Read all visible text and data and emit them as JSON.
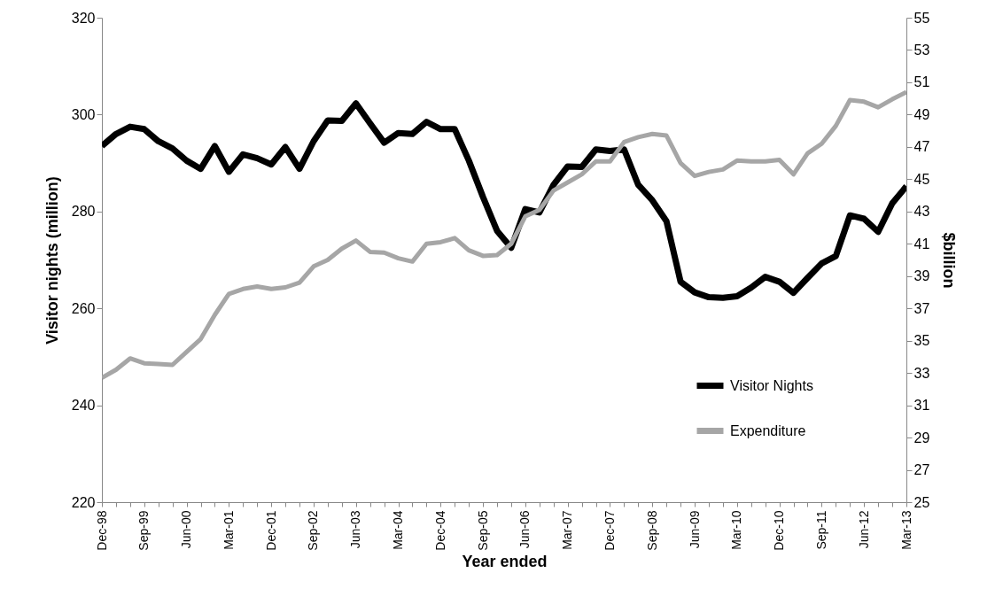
{
  "chart_data": {
    "type": "line",
    "xlabel": "Year ended",
    "ylabel": "Visitor nights (million)",
    "y2label": "$billion",
    "categories": [
      "Dec-98",
      null,
      null,
      "Sep-99",
      null,
      null,
      "Jun-00",
      null,
      null,
      "Mar-01",
      null,
      null,
      "Dec-01",
      null,
      null,
      "Sep-02",
      null,
      null,
      "Jun-03",
      null,
      null,
      "Mar-04",
      null,
      null,
      "Dec-04",
      null,
      null,
      "Sep-05",
      null,
      null,
      "Jun-06",
      null,
      null,
      "Mar-07",
      null,
      null,
      "Dec-07",
      null,
      null,
      "Sep-08",
      null,
      null,
      "Jun-09",
      null,
      null,
      "Mar-10",
      null,
      null,
      "Dec-10",
      null,
      null,
      "Sep-11",
      null,
      null,
      "Jun-12",
      null,
      null,
      "Mar-13"
    ],
    "series": [
      {
        "name": "Visitor Nights",
        "color": "#000000",
        "values": [
          293.5,
          296,
          297.5,
          297,
          294.5,
          293,
          290.5,
          288.8,
          293.5,
          288.2,
          291.8,
          291,
          289.7,
          293.3,
          288.8,
          294.5,
          298.8,
          298.7,
          302.3,
          298.2,
          294.2,
          296.2,
          296,
          298.5,
          297,
          297,
          290.5,
          283,
          276,
          272.5,
          280.5,
          279.8,
          285.5,
          289.3,
          289.2,
          292.8,
          292.5,
          292.8,
          285.5,
          282.3,
          278,
          265.5,
          263.3,
          262.3,
          262.2,
          262.5,
          264.3,
          266.5,
          265.5,
          263.2,
          266.3,
          269.3,
          270.8,
          279.2,
          278.5,
          275.8,
          281.7,
          285.2
        ]
      },
      {
        "name": "Expenditure",
        "color": "#a6a6a6",
        "axis": "y2",
        "values": [
          32.7,
          33.2,
          33.9,
          33.6,
          33.55,
          33.5,
          34.3,
          35.1,
          36.6,
          37.9,
          38.2,
          38.35,
          38.2,
          38.3,
          38.6,
          39.6,
          40,
          40.7,
          41.2,
          40.5,
          40.45,
          40.1,
          39.9,
          41,
          41.1,
          41.35,
          40.6,
          40.25,
          40.3,
          41,
          42.7,
          43.1,
          44.3,
          44.8,
          45.3,
          46.1,
          46.1,
          47.3,
          47.6,
          47.8,
          47.7,
          46,
          45.2,
          45.45,
          45.6,
          46.15,
          46.1,
          46.1,
          46.2,
          45.3,
          46.6,
          47.2,
          48.3,
          49.9,
          49.8,
          49.45,
          49.95,
          50.4
        ]
      }
    ],
    "ylim": [
      220,
      320
    ],
    "yticks": [
      220,
      240,
      260,
      280,
      300,
      320
    ],
    "y2lim": [
      25,
      55
    ],
    "y2ticks": [
      25,
      27,
      29,
      31,
      33,
      35,
      37,
      39,
      41,
      43,
      45,
      47,
      49,
      51,
      53,
      55
    ],
    "grid": false,
    "legend": "bottom right"
  }
}
